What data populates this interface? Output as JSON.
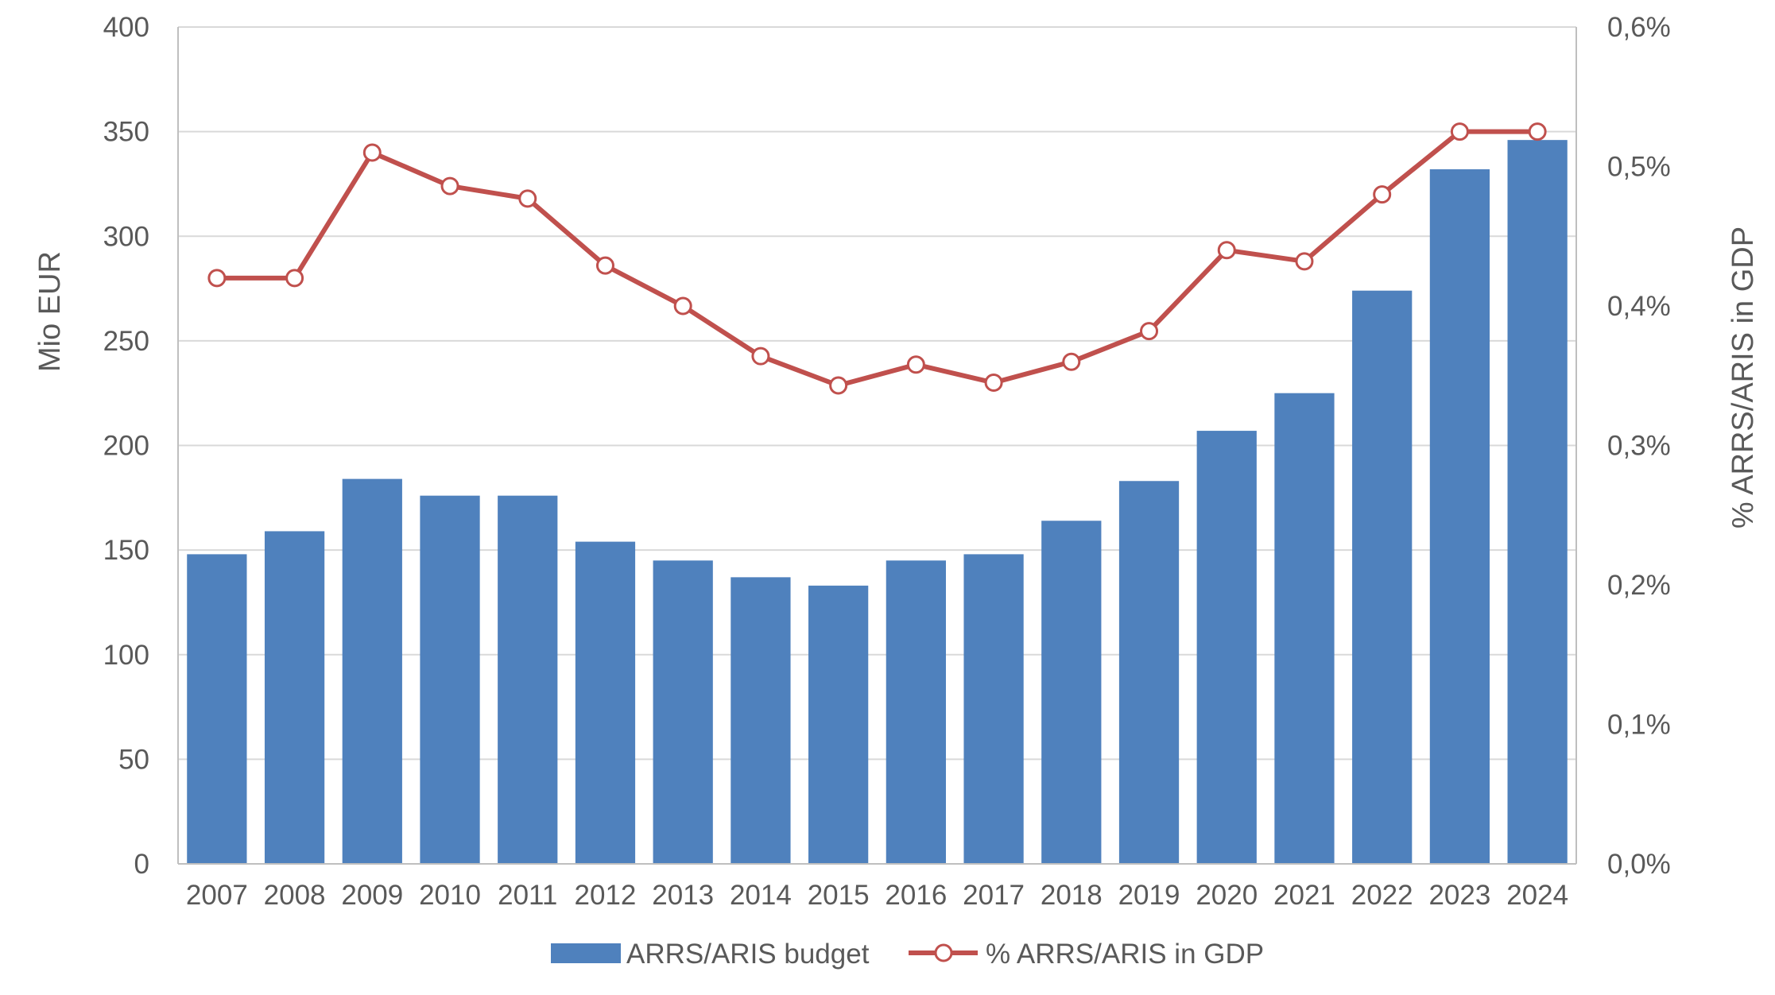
{
  "chart_data": {
    "type": "bar+line",
    "title": "",
    "categories": [
      "2007",
      "2008",
      "2009",
      "2010",
      "2011",
      "2012",
      "2013",
      "2014",
      "2015",
      "2016",
      "2017",
      "2018",
      "2019",
      "2020",
      "2021",
      "2022",
      "2023",
      "2024"
    ],
    "series": [
      {
        "name": "ARRS/ARIS budget",
        "type": "bar",
        "axis": "left",
        "color": "#4F81BD",
        "values": [
          148,
          159,
          184,
          176,
          176,
          154,
          145,
          137,
          133,
          145,
          148,
          164,
          183,
          207,
          225,
          274,
          332,
          346
        ]
      },
      {
        "name": "% ARRS/ARIS in GDP",
        "type": "line",
        "axis": "right",
        "color": "#C0504D",
        "marker": "open-circle",
        "values": [
          0.42,
          0.42,
          0.51,
          0.486,
          0.477,
          0.429,
          0.4,
          0.364,
          0.343,
          0.358,
          0.345,
          0.36,
          0.382,
          0.44,
          0.432,
          0.48,
          0.525,
          0.525
        ]
      }
    ],
    "y_left": {
      "label": "Mio EUR",
      "ylim": [
        0,
        400
      ],
      "ticks": [
        0,
        50,
        100,
        150,
        200,
        250,
        300,
        350,
        400
      ],
      "tick_labels": [
        "0",
        "50",
        "100",
        "150",
        "200",
        "250",
        "300",
        "350",
        "400"
      ]
    },
    "y_right": {
      "label": "% ARRS/ARIS in GDP",
      "ylim": [
        0,
        0.6
      ],
      "ticks": [
        0,
        0.1,
        0.2,
        0.3,
        0.4,
        0.5,
        0.6
      ],
      "tick_labels": [
        "0,0%",
        "0,1%",
        "0,2%",
        "0,3%",
        "0,4%",
        "0,5%",
        "0,6%"
      ]
    },
    "grid": true,
    "legend": {
      "position": "bottom",
      "entries": [
        "ARRS/ARIS budget",
        "% ARRS/ARIS in GDP"
      ]
    },
    "colors": {
      "grid": "#D9D9D9",
      "axis": "#BFBFBF",
      "text": "#595959"
    }
  }
}
